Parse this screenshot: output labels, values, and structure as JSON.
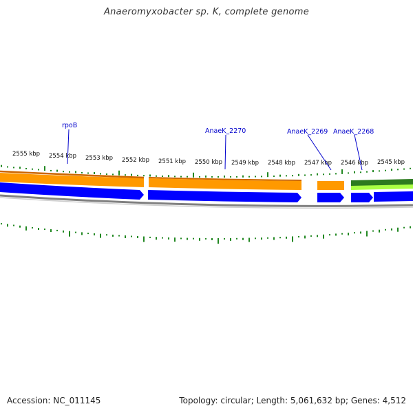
{
  "title": "Anaeromyxobacter sp. K, complete genome",
  "accession_text": "Accession: NC_011145",
  "topology_text": "Topology: circular; Length: 5,061,632 bp; Genes: 4,512",
  "ticks": [
    {
      "label": "2555 kbp"
    },
    {
      "label": "2554 kbp"
    },
    {
      "label": "2553 kbp"
    },
    {
      "label": "2552 kbp"
    },
    {
      "label": "2551 kbp"
    },
    {
      "label": "2550 kbp"
    },
    {
      "label": "2549 kbp"
    },
    {
      "label": "2548 kbp"
    },
    {
      "label": "2547 kbp"
    },
    {
      "label": "2546 kbp"
    },
    {
      "label": "2545 kbp"
    }
  ],
  "gene_labels": [
    {
      "label": "rpoB"
    },
    {
      "label": "AnaeK_2270"
    },
    {
      "label": "AnaeK_2269"
    },
    {
      "label": "AnaeK_2268"
    }
  ],
  "colors": {
    "orange_track": "#ff9900",
    "orange_dark": "#cc6600",
    "blue_track": "#0000ff",
    "green_dark": "#2d7a1f",
    "green_light": "#aaff44",
    "backbone": "#808080",
    "gc_bars": "#228822",
    "label_blue": "#0000cc"
  }
}
